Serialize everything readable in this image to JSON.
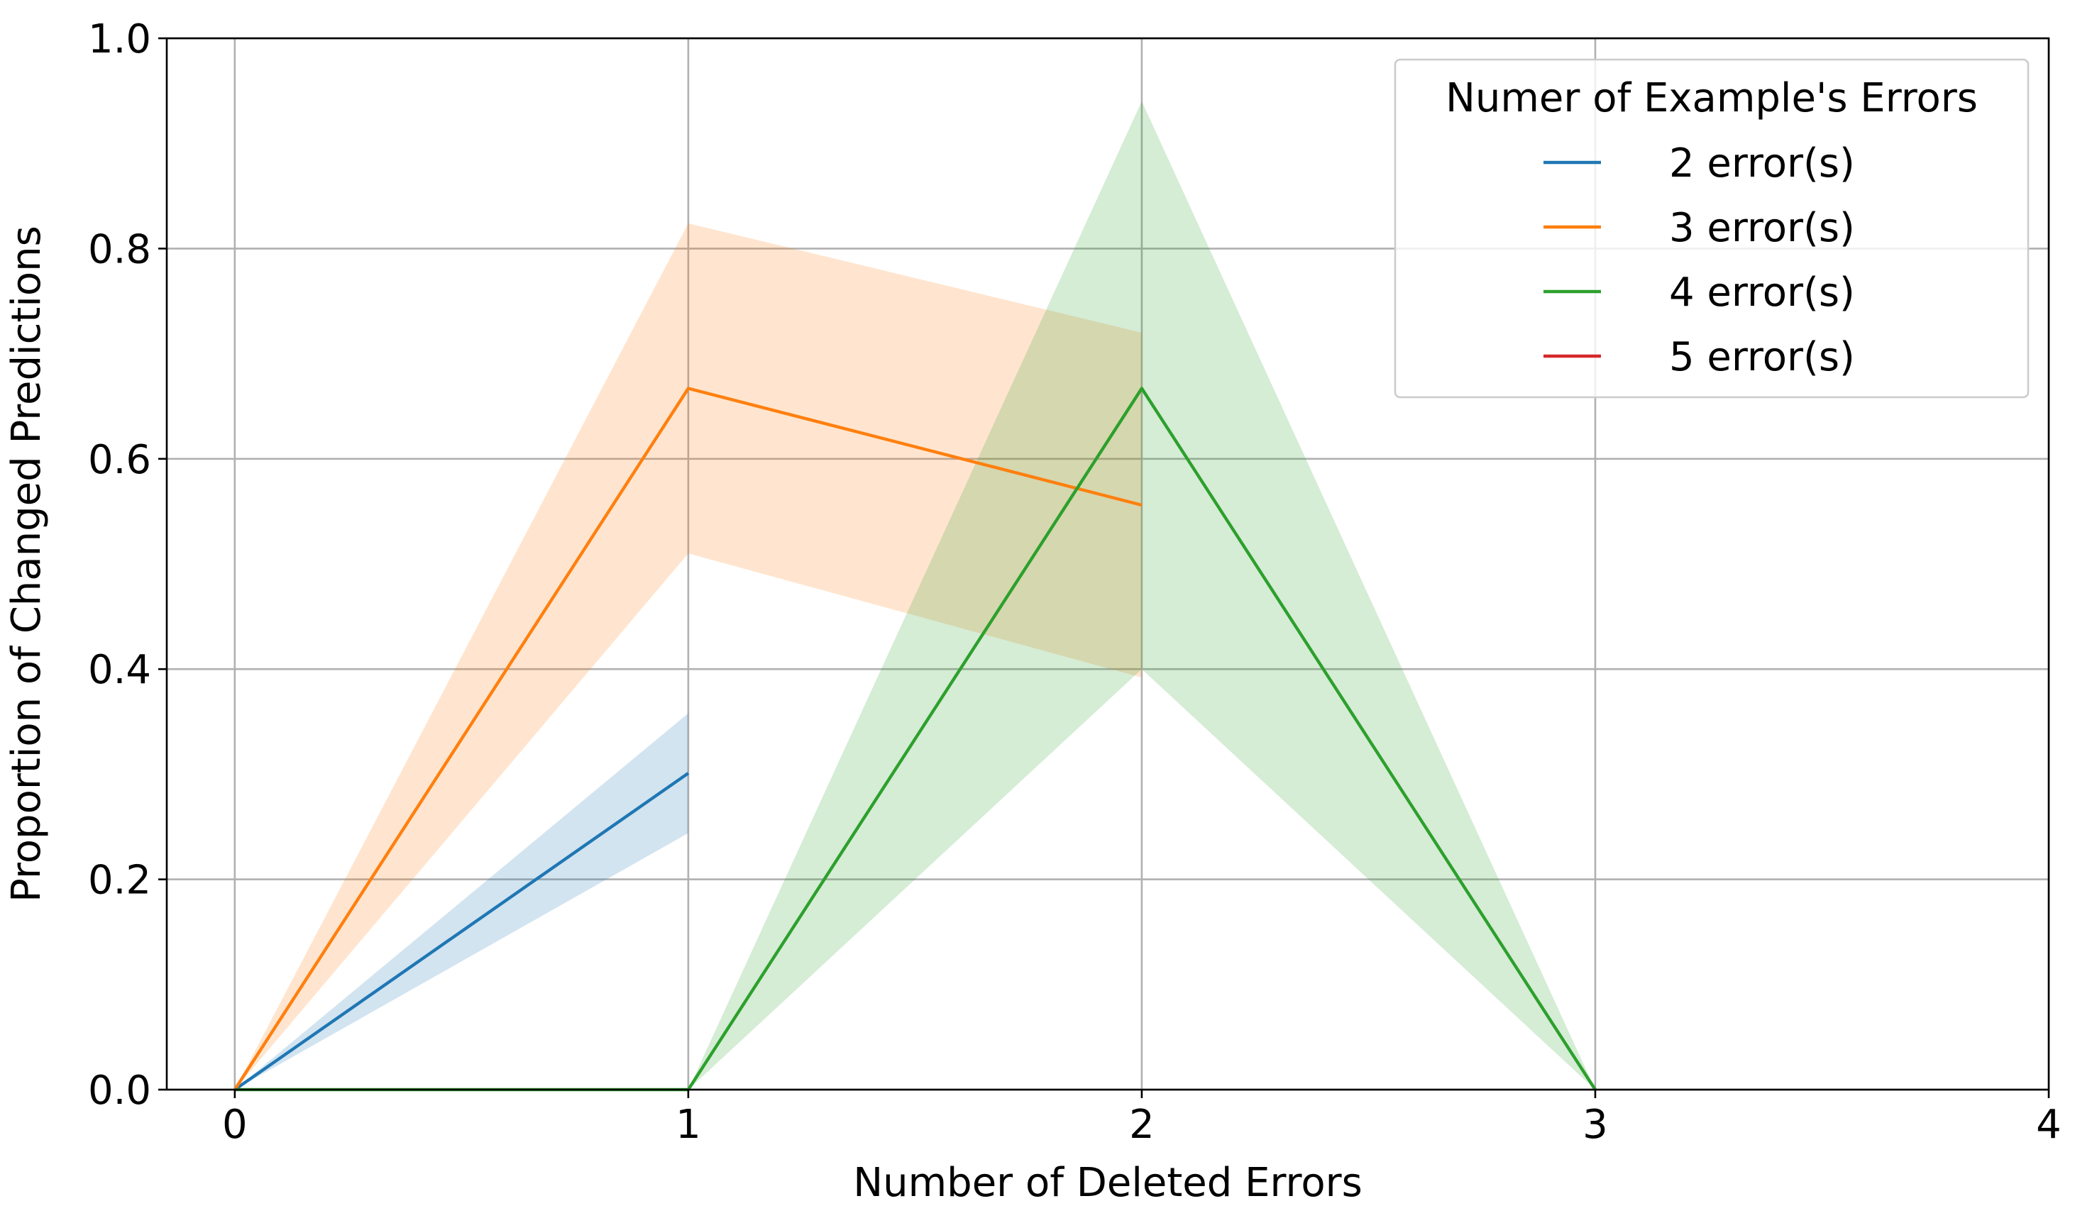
{
  "chart_data": {
    "type": "line",
    "title": "",
    "xlabel": "Number of Deleted Errors",
    "ylabel": "Proportion of Changed Predictions",
    "xlim": [
      -0.15,
      4.0
    ],
    "ylim": [
      0.0,
      1.0
    ],
    "xticks": [
      0,
      1,
      2,
      3,
      4
    ],
    "xtick_labels": [
      "0",
      "1",
      "2",
      "3",
      "4"
    ],
    "yticks": [
      0.0,
      0.2,
      0.4,
      0.6,
      0.8,
      1.0
    ],
    "ytick_labels": [
      "0.0",
      "0.2",
      "0.4",
      "0.6",
      "0.8",
      "1.0"
    ],
    "grid": true,
    "legend": {
      "title": "Numer of Example's Errors",
      "position": "top-right"
    },
    "series": [
      {
        "name": "2 error(s)",
        "color": "#1f77b4",
        "x": [
          0,
          1
        ],
        "y": [
          0.0,
          0.301
        ],
        "ci_lower": [
          0.0,
          0.244
        ],
        "ci_upper": [
          0.0,
          0.358
        ]
      },
      {
        "name": "3 error(s)",
        "color": "#ff7f0e",
        "x": [
          0,
          1,
          2
        ],
        "y": [
          0.0,
          0.667,
          0.556
        ],
        "ci_lower": [
          0.0,
          0.51,
          0.392
        ],
        "ci_upper": [
          0.0,
          0.824,
          0.72
        ]
      },
      {
        "name": "4 error(s)",
        "color": "#2ca02c",
        "x": [
          0,
          1,
          2,
          3
        ],
        "y": [
          0.0,
          0.0,
          0.667,
          0.0
        ],
        "ci_lower": [
          0.0,
          0.0,
          0.4,
          0.0
        ],
        "ci_upper": [
          0.0,
          0.0,
          0.94,
          0.0
        ]
      },
      {
        "name": "5 error(s)",
        "color": "#d62728",
        "x": [],
        "y": [],
        "ci_lower": [],
        "ci_upper": []
      }
    ]
  }
}
